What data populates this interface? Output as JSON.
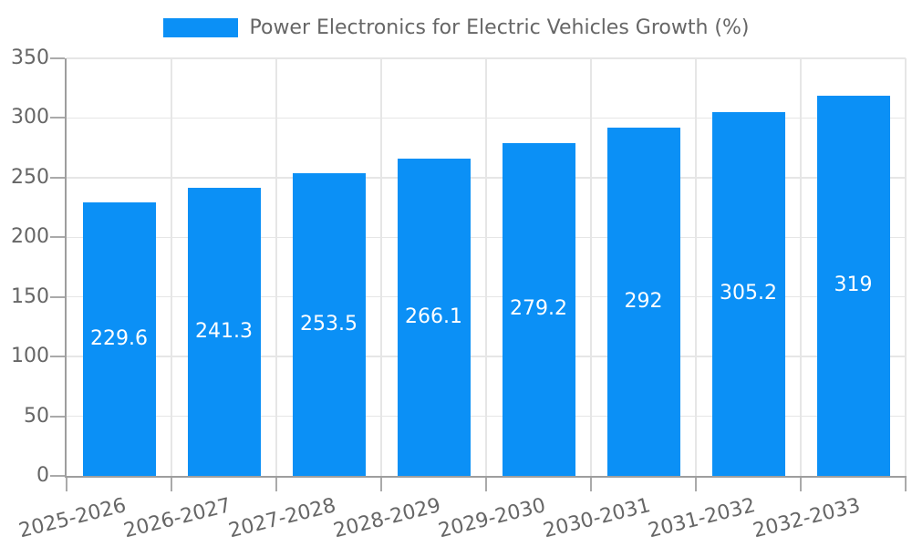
{
  "chart_data": {
    "type": "bar",
    "title": "Power Electronics for Electric Vehicles Growth (%)",
    "legend_position": "top",
    "categories": [
      "2025-2026",
      "2026-2027",
      "2027-2028",
      "2028-2029",
      "2029-2030",
      "2030-2031",
      "2031-2032",
      "2032-2033"
    ],
    "values": [
      229.6,
      241.3,
      253.5,
      266.1,
      279.2,
      292,
      305.2,
      319
    ],
    "xlabel": "",
    "ylabel": "",
    "ylim": [
      0,
      350
    ],
    "yticks": [
      0,
      50,
      100,
      150,
      200,
      250,
      300,
      350
    ],
    "grid": true,
    "x_label_rotation_deg": -14,
    "colors": {
      "bar": "#0b90f6",
      "value_label": "#ffffff",
      "axis_line": "#9e9e9e",
      "tick_mark": "#aaaaaa",
      "grid_line": "#e6e6e6",
      "text": "#666666",
      "background": "#ffffff"
    }
  }
}
